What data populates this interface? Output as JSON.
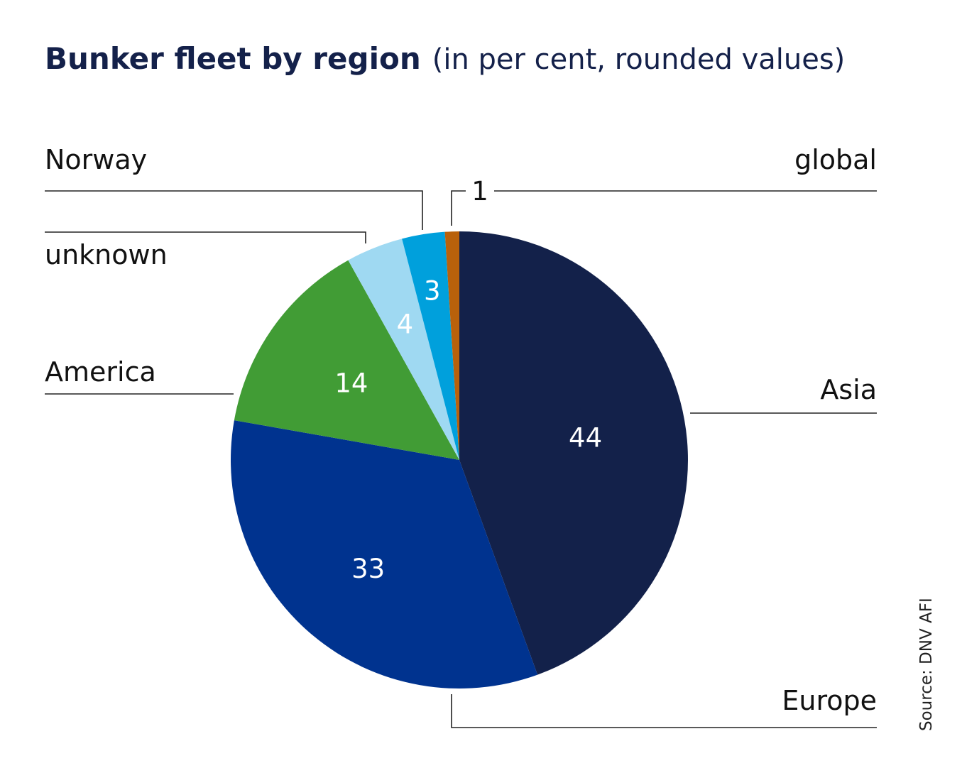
{
  "chart_data": {
    "type": "pie",
    "title": "Bunker fleet by region",
    "subtitle": "(in per cent, rounded values)",
    "source": "Source: DNV AFI",
    "slices": [
      {
        "label": "Asia",
        "value": 44,
        "value_label": "44",
        "color": "#13214a"
      },
      {
        "label": "Europe",
        "value": 33,
        "value_label": "33",
        "color": "#00338f"
      },
      {
        "label": "America",
        "value": 14,
        "value_label": "14",
        "color": "#419c35"
      },
      {
        "label": "unknown",
        "value": 4,
        "value_label": "4",
        "color": "#9fd9f2"
      },
      {
        "label": "Norway",
        "value": 3,
        "value_label": "3",
        "color": "#00a0dc"
      },
      {
        "label": "global",
        "value": 1,
        "value_label": "1",
        "color": "#b9610b"
      }
    ]
  }
}
